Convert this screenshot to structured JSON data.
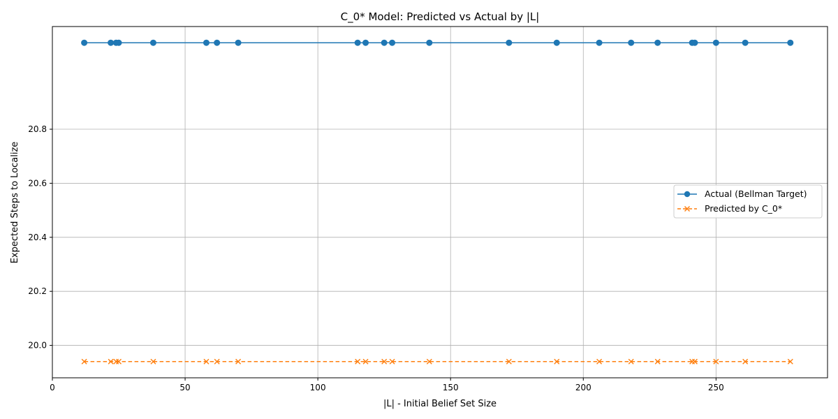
{
  "chart_data": {
    "type": "line",
    "title": "C_0* Model: Predicted vs Actual by |L|",
    "xlabel": "|L| - Initial Belief Set Size",
    "ylabel": "Expected Steps to Localize",
    "xlim": [
      0,
      292
    ],
    "ylim": [
      19.88,
      21.18
    ],
    "xticks": [
      0,
      50,
      100,
      150,
      200,
      250
    ],
    "yticks": [
      20.0,
      20.2,
      20.4,
      20.6,
      20.8
    ],
    "xtick_labels": [
      "0",
      "50",
      "100",
      "150",
      "200",
      "250"
    ],
    "ytick_labels": [
      "20.0",
      "20.2",
      "20.4",
      "20.6",
      "20.8"
    ],
    "grid": true,
    "legend_position": "center-right",
    "x": [
      12,
      22,
      24,
      25,
      38,
      58,
      62,
      70,
      115,
      118,
      125,
      128,
      142,
      172,
      190,
      206,
      218,
      228,
      241,
      242,
      250,
      261,
      278
    ],
    "series": [
      {
        "name": "Actual (Bellman Target)",
        "color": "#1f77b4",
        "line_style": "solid",
        "marker": "circle",
        "values": [
          21.12,
          21.12,
          21.12,
          21.12,
          21.12,
          21.12,
          21.12,
          21.12,
          21.12,
          21.12,
          21.12,
          21.12,
          21.12,
          21.12,
          21.12,
          21.12,
          21.12,
          21.12,
          21.12,
          21.12,
          21.12,
          21.12,
          21.12
        ]
      },
      {
        "name": "Predicted by C_0*",
        "color": "#ff7f0e",
        "line_style": "dashed",
        "marker": "x",
        "values": [
          19.94,
          19.94,
          19.94,
          19.94,
          19.94,
          19.94,
          19.94,
          19.94,
          19.94,
          19.94,
          19.94,
          19.94,
          19.94,
          19.94,
          19.94,
          19.94,
          19.94,
          19.94,
          19.94,
          19.94,
          19.94,
          19.94,
          19.94
        ]
      }
    ]
  }
}
